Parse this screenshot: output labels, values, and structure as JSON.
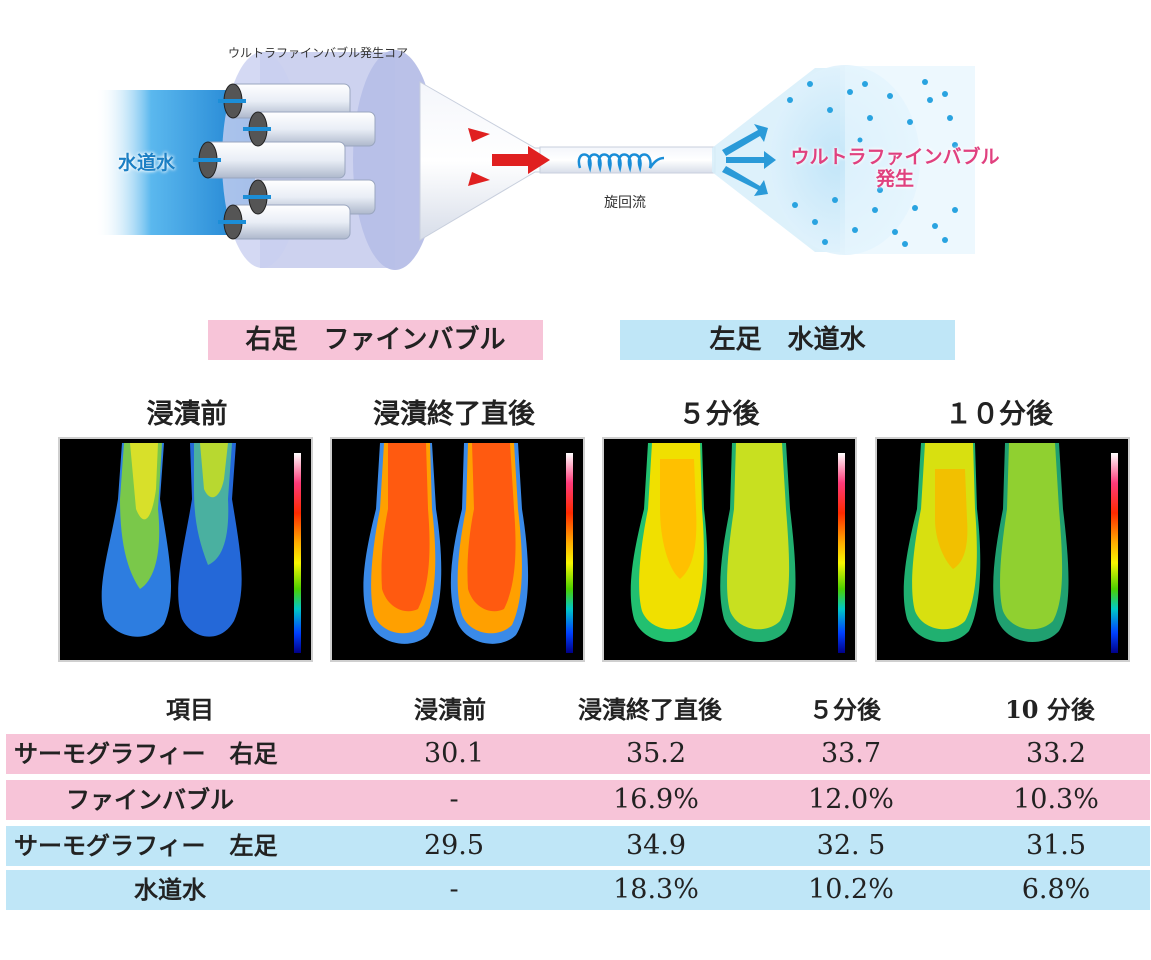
{
  "diagram": {
    "core_label": "ウルトラファインバブル発生コア",
    "tap_water_label": "水道水",
    "swirl_label": "旋回流",
    "result_label_line1": "ウルトラファインバブル",
    "result_label_line2": "発生",
    "colors": {
      "water": "#1b8ed8",
      "arrow": "#e02020",
      "result_text": "#e0417f",
      "bubble": "#29a3e0"
    },
    "icons": [
      "water-inlet-icon",
      "cylinder-icon",
      "arrow-icon",
      "swirl-coil-icon",
      "bubble-icon"
    ]
  },
  "legend": {
    "right_foot": "右足　ファインバブル",
    "left_foot": "左足　水道水",
    "right_color": "#f7c4d8",
    "left_color": "#bfe6f7"
  },
  "thermo_titles": [
    "浸漬前",
    "浸漬終了直後",
    "５分後",
    "１０分後"
  ],
  "table": {
    "headers": [
      "項目",
      "浸漬前",
      "浸漬終了直後",
      "５分後",
      "10 分後"
    ],
    "rows": [
      {
        "label": "サーモグラフィー　右足",
        "values": [
          "30.1",
          "35.2",
          "33.7",
          "33.2"
        ],
        "color": "#f7c4d8"
      },
      {
        "label": "ファインバブル",
        "values": [
          "-",
          "16.9%",
          "12.0%",
          "10.3%"
        ],
        "color": "#f7c4d8"
      },
      {
        "label": "サーモグラフィー　左足",
        "values": [
          "29.5",
          "34.9",
          "32. 5",
          "31.5"
        ],
        "color": "#bfe6f7"
      },
      {
        "label": "水道水",
        "values": [
          "-",
          "18.3%",
          "10.2%",
          "6.8%"
        ],
        "color": "#bfe6f7"
      }
    ]
  }
}
